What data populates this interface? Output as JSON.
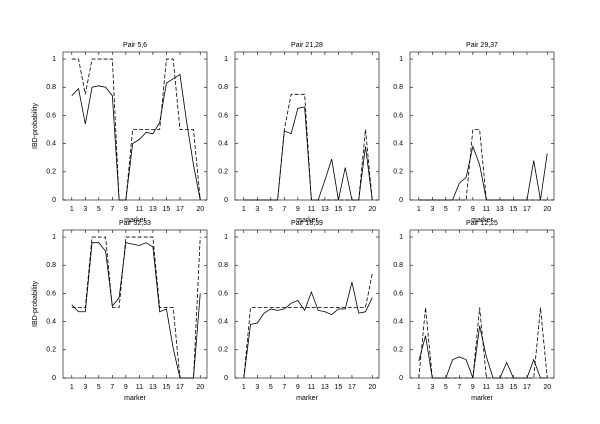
{
  "chart_data": [
    {
      "type": "line",
      "title": "Pair 5,6",
      "xlabel": "marker",
      "ylabel": "IBD-probability",
      "x": [
        1,
        2,
        3,
        4,
        5,
        6,
        7,
        8,
        9,
        10,
        11,
        12,
        13,
        14,
        15,
        16,
        17,
        18,
        19,
        20
      ],
      "series": [
        {
          "color": "#000000",
          "linestyle": "solid",
          "values": [
            0.74,
            0.79,
            0.54,
            0.8,
            0.81,
            0.8,
            0.74,
            0,
            0,
            0.4,
            0.43,
            0.48,
            0.47,
            0.55,
            0.83,
            0.86,
            0.89,
            0.55,
            0.25,
            0
          ]
        },
        {
          "color": "#000000",
          "linestyle": "dashed",
          "values": [
            1,
            1,
            0.75,
            1,
            1,
            1,
            1,
            0,
            0,
            0.5,
            0.5,
            0.5,
            0.5,
            0.5,
            1,
            1,
            0.5,
            0.5,
            0.5,
            0
          ]
        }
      ],
      "xlim": [
        -0.3,
        21
      ],
      "ylim": [
        0,
        1.05
      ],
      "xticks": [
        1,
        3,
        5,
        7,
        9,
        11,
        13,
        15,
        17,
        20
      ],
      "yticks": [
        0,
        0.2,
        0.4,
        0.6,
        0.8,
        1
      ]
    },
    {
      "type": "line",
      "title": "Pair 21,28",
      "xlabel": "marker",
      "x": [
        1,
        2,
        3,
        4,
        5,
        6,
        7,
        8,
        9,
        10,
        11,
        12,
        13,
        14,
        15,
        16,
        17,
        18,
        19,
        20
      ],
      "series": [
        {
          "color": "#000000",
          "linestyle": "solid",
          "values": [
            0,
            0,
            0,
            0,
            0,
            0,
            0.49,
            0.47,
            0.65,
            0.66,
            0,
            0,
            0.14,
            0.29,
            0,
            0.23,
            0,
            0,
            0.38,
            0
          ]
        },
        {
          "color": "#000000",
          "linestyle": "dashed",
          "values": [
            0,
            0,
            0,
            0,
            0,
            0,
            0.5,
            0.75,
            0.75,
            0.75,
            0,
            0,
            0,
            0,
            0,
            0,
            0,
            0,
            0.5,
            0
          ]
        }
      ],
      "xlim": [
        -0.3,
        21
      ],
      "ylim": [
        0,
        1.05
      ],
      "xticks": [
        1,
        3,
        5,
        7,
        9,
        11,
        13,
        15,
        17,
        20
      ],
      "yticks": [
        0,
        0.2,
        0.4,
        0.6,
        0.8,
        1
      ]
    },
    {
      "type": "line",
      "title": "Pair 29,37",
      "xlabel": "marker",
      "x": [
        1,
        2,
        3,
        4,
        5,
        6,
        7,
        8,
        9,
        10,
        11,
        12,
        13,
        14,
        15,
        16,
        17,
        18,
        19,
        20
      ],
      "series": [
        {
          "color": "#000000",
          "linestyle": "solid",
          "values": [
            0,
            0,
            0,
            0,
            0,
            0,
            0.12,
            0.16,
            0.38,
            0.25,
            0,
            0,
            0,
            0,
            0,
            0,
            0,
            0.28,
            0,
            0.33
          ]
        },
        {
          "color": "#000000",
          "linestyle": "dashed",
          "values": [
            0,
            0,
            0,
            0,
            0,
            0,
            0,
            0,
            0.5,
            0.5,
            0,
            0,
            0,
            0,
            0,
            0,
            0,
            0,
            0,
            0
          ]
        }
      ],
      "xlim": [
        -0.3,
        21
      ],
      "ylim": [
        0,
        1.05
      ],
      "xticks": [
        1,
        3,
        5,
        7,
        9,
        11,
        13,
        15,
        17,
        20
      ],
      "yticks": [
        0,
        0.2,
        0.4,
        0.6,
        0.8,
        1
      ]
    },
    {
      "type": "line",
      "title": "Pair 32,33",
      "xlabel": "marker",
      "ylabel": "IBD-probability",
      "x": [
        1,
        2,
        3,
        4,
        5,
        6,
        7,
        8,
        9,
        10,
        11,
        12,
        13,
        14,
        15,
        16,
        17,
        18,
        19,
        20
      ],
      "series": [
        {
          "color": "#000000",
          "linestyle": "solid",
          "values": [
            0.52,
            0.47,
            0.47,
            0.96,
            0.96,
            0.9,
            0.51,
            0.57,
            0.96,
            0.95,
            0.94,
            0.96,
            0.93,
            0.47,
            0.49,
            0.21,
            0,
            0,
            0,
            0.6
          ]
        },
        {
          "color": "#000000",
          "linestyle": "dashed",
          "values": [
            0.5,
            0.5,
            0.5,
            1,
            1,
            1,
            0.5,
            0.5,
            1,
            1,
            1,
            1,
            1,
            0.5,
            0.5,
            0.5,
            0,
            0,
            0,
            1
          ]
        }
      ],
      "xlim": [
        -0.3,
        21
      ],
      "ylim": [
        0,
        1.05
      ],
      "xticks": [
        1,
        3,
        5,
        7,
        9,
        11,
        13,
        15,
        17,
        20
      ],
      "yticks": [
        0,
        0.2,
        0.4,
        0.6,
        0.8,
        1
      ]
    },
    {
      "type": "line",
      "title": "Pair 18,39",
      "xlabel": "marker",
      "x": [
        1,
        2,
        3,
        4,
        5,
        6,
        7,
        8,
        9,
        10,
        11,
        12,
        13,
        14,
        15,
        16,
        17,
        18,
        19,
        20
      ],
      "series": [
        {
          "color": "#000000",
          "linestyle": "solid",
          "values": [
            0,
            0.38,
            0.39,
            0.46,
            0.49,
            0.48,
            0.49,
            0.53,
            0.55,
            0.48,
            0.61,
            0.48,
            0.47,
            0.45,
            0.49,
            0.49,
            0.68,
            0.46,
            0.47,
            0.57
          ]
        },
        {
          "color": "#000000",
          "linestyle": "dashed",
          "values": [
            0,
            0.5,
            0.5,
            0.5,
            0.5,
            0.5,
            0.5,
            0.5,
            0.5,
            0.5,
            0.5,
            0.5,
            0.5,
            0.5,
            0.5,
            0.5,
            0.5,
            0.5,
            0.5,
            0.74
          ]
        }
      ],
      "xlim": [
        -0.3,
        21
      ],
      "ylim": [
        0,
        1.05
      ],
      "xticks": [
        1,
        3,
        5,
        7,
        9,
        11,
        13,
        15,
        17,
        20
      ],
      "yticks": [
        0,
        0.2,
        0.4,
        0.6,
        0.8,
        1
      ]
    },
    {
      "type": "line",
      "title": "Pair 12,25",
      "xlabel": "marker",
      "x": [
        1,
        2,
        3,
        4,
        5,
        6,
        7,
        8,
        9,
        10,
        11,
        12,
        13,
        14,
        15,
        16,
        17,
        18,
        19,
        20
      ],
      "series": [
        {
          "color": "#000000",
          "linestyle": "solid",
          "values": [
            0.12,
            0.3,
            0,
            0,
            0,
            0.13,
            0.15,
            0.13,
            0,
            0.37,
            0.15,
            0,
            0,
            0.11,
            0,
            0,
            0,
            0.13,
            0,
            0
          ]
        },
        {
          "color": "#000000",
          "linestyle": "dashed",
          "values": [
            0,
            0.5,
            0,
            0,
            0,
            0,
            0,
            0,
            0,
            0.5,
            0,
            0,
            0,
            0,
            0,
            0,
            0,
            0,
            0.5,
            0
          ]
        }
      ],
      "xlim": [
        -0.3,
        21
      ],
      "ylim": [
        0,
        1.05
      ],
      "xticks": [
        1,
        3,
        5,
        7,
        9,
        11,
        13,
        15,
        17,
        20
      ],
      "yticks": [
        0,
        0.2,
        0.4,
        0.6,
        0.8,
        1
      ]
    }
  ]
}
